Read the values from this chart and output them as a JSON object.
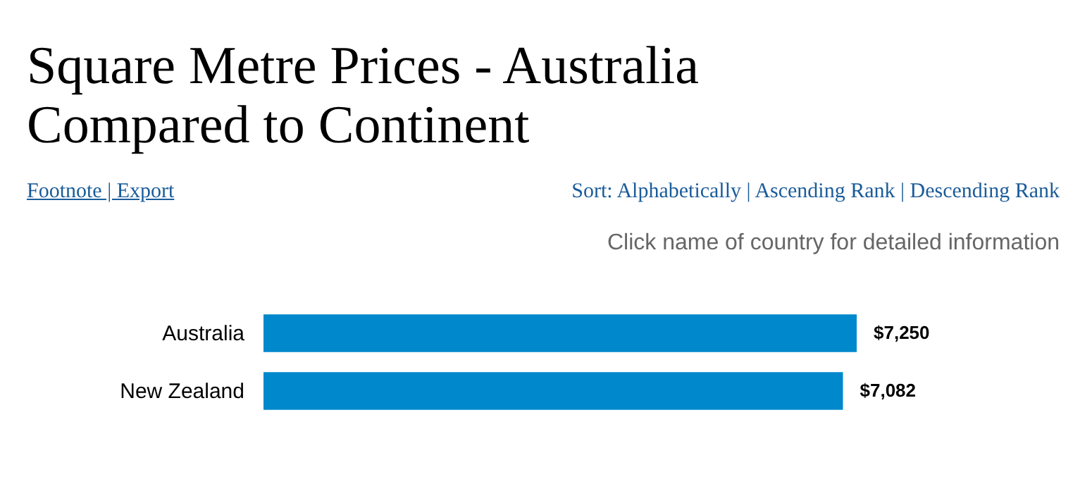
{
  "chart_data": {
    "type": "bar",
    "orientation": "horizontal",
    "title": "Square Metre Prices - Australia Compared to Continent",
    "annotations": [
      "Footnote  |  Export",
      "Sort: Alphabetically | Ascending Rank | Descending Rank",
      "Click name of country for detailed information"
    ],
    "categories": [
      "Australia",
      "New Zealand"
    ],
    "series": [
      {
        "color": "#0088cc",
        "values": [
          7250,
          7082
        ],
        "value_labels": [
          "$7,250",
          "$7,082"
        ]
      }
    ]
  }
}
